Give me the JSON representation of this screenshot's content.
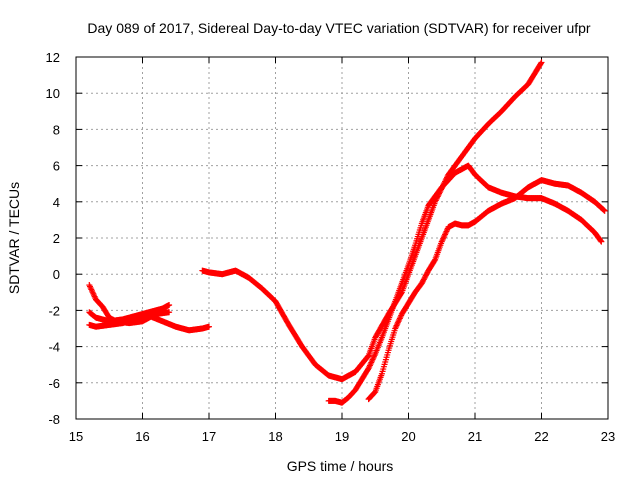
{
  "chart_data": {
    "type": "scatter",
    "title": "Day 089 of 2017, Sidereal Day-to-day VTEC variation (SDTVAR) for receiver ufpr",
    "xlabel": "GPS time / hours",
    "ylabel": "SDTVAR / TECUs",
    "xlim": [
      15,
      23
    ],
    "ylim": [
      -8,
      12
    ],
    "xticks": [
      "15",
      "16",
      "17",
      "18",
      "19",
      "20",
      "21",
      "22",
      "23"
    ],
    "yticks": [
      "-8",
      "-6",
      "-4",
      "-2",
      "0",
      "2",
      "4",
      "6",
      "8",
      "10",
      "12"
    ],
    "grid": true,
    "marker": "plus",
    "color": "#ff0000",
    "series": [
      {
        "x": [
          15.2,
          15.3,
          15.5,
          15.7,
          15.9,
          16.1,
          16.3,
          16.5,
          16.7,
          16.9,
          17.0
        ],
        "y": [
          -2.8,
          -2.9,
          -2.8,
          -2.7,
          -2.5,
          -2.3,
          -2.6,
          -2.9,
          -3.1,
          -3.0,
          -2.9
        ]
      },
      {
        "x": [
          15.2,
          15.3,
          15.5,
          15.7,
          15.9,
          16.0,
          16.1,
          16.2,
          16.3,
          16.4
        ],
        "y": [
          -2.1,
          -2.4,
          -2.6,
          -2.5,
          -2.3,
          -2.2,
          -2.1,
          -2.0,
          -1.9,
          -1.7
        ]
      },
      {
        "x": [
          15.2,
          15.3,
          15.4,
          15.5,
          15.6,
          15.8,
          16.0,
          16.2,
          16.4
        ],
        "y": [
          -0.6,
          -1.4,
          -1.8,
          -2.4,
          -2.6,
          -2.7,
          -2.6,
          -2.2,
          -2.1
        ]
      },
      {
        "x": [
          16.9,
          17.0,
          17.2,
          17.4,
          17.6,
          17.8,
          18.0,
          18.2,
          18.4,
          18.6,
          18.8,
          19.0,
          19.2,
          19.4,
          19.5,
          19.7,
          19.9,
          20.0,
          20.2,
          20.4,
          20.6,
          20.8,
          21.0,
          21.2,
          21.4,
          21.6,
          21.8,
          22.0
        ],
        "y": [
          0.2,
          0.1,
          0.0,
          0.2,
          -0.2,
          -0.8,
          -1.5,
          -2.8,
          -4.0,
          -5.0,
          -5.6,
          -5.8,
          -5.4,
          -4.5,
          -3.5,
          -2.2,
          -1.0,
          0.0,
          2.0,
          4.0,
          5.5,
          6.5,
          7.5,
          8.3,
          9.0,
          9.8,
          10.5,
          11.7
        ]
      },
      {
        "x": [
          18.8,
          18.9,
          19.0,
          19.1,
          19.2,
          19.3,
          19.4,
          19.5,
          19.6,
          19.7,
          19.8,
          19.9,
          20.0,
          20.1,
          20.2,
          20.3,
          20.5,
          20.7,
          20.9,
          21.0,
          21.2,
          21.4,
          21.6,
          21.8,
          22.0,
          22.2,
          22.4,
          22.6,
          22.8,
          22.9
        ],
        "y": [
          -7.0,
          -7.0,
          -7.1,
          -6.8,
          -6.4,
          -5.8,
          -5.2,
          -4.4,
          -3.5,
          -2.5,
          -1.5,
          -0.5,
          0.5,
          1.6,
          2.8,
          3.8,
          4.8,
          5.6,
          6.0,
          5.5,
          4.8,
          4.5,
          4.3,
          4.2,
          4.2,
          3.9,
          3.5,
          3.0,
          2.3,
          1.8
        ]
      },
      {
        "x": [
          19.4,
          19.5,
          19.6,
          19.7,
          19.8,
          19.9,
          20.0,
          20.1,
          20.2,
          20.3,
          20.4,
          20.5,
          20.6,
          20.7,
          20.8,
          20.9,
          21.0,
          21.2,
          21.4,
          21.6,
          21.8,
          22.0,
          22.2,
          22.4,
          22.6,
          22.8,
          22.95
        ],
        "y": [
          -6.9,
          -6.5,
          -5.5,
          -4.2,
          -3.0,
          -2.2,
          -1.6,
          -1.0,
          -0.5,
          0.2,
          0.8,
          1.8,
          2.6,
          2.8,
          2.7,
          2.7,
          2.9,
          3.5,
          3.9,
          4.2,
          4.8,
          5.2,
          5.0,
          4.9,
          4.5,
          4.0,
          3.5
        ]
      }
    ]
  }
}
